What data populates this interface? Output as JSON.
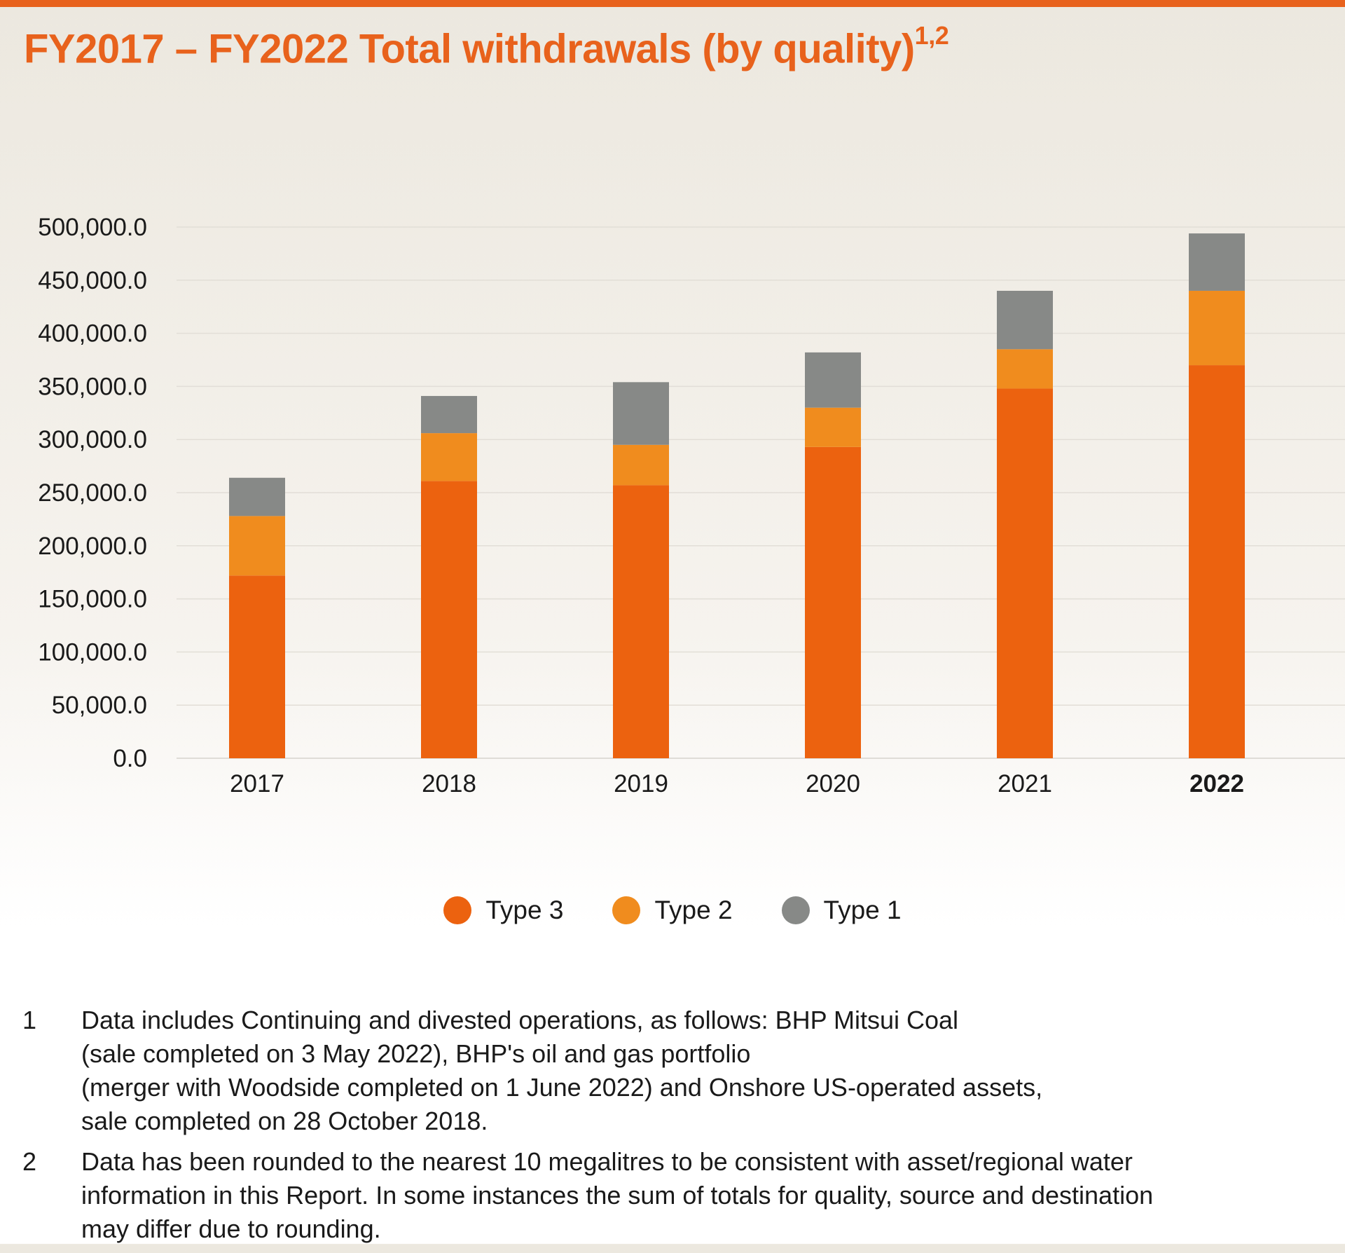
{
  "title": "FY2017 – FY2022 Total withdrawals (by quality)",
  "title_sup": "1,2",
  "chart_data": {
    "type": "bar",
    "stacked": true,
    "categories": [
      "2017",
      "2018",
      "2019",
      "2020",
      "2021",
      "2022"
    ],
    "highlight_category": "2022",
    "series": [
      {
        "name": "Type 3",
        "color": "#ec620f",
        "values": [
          172000,
          261000,
          257000,
          293000,
          348000,
          370000
        ]
      },
      {
        "name": "Type 2",
        "color": "#f08c1e",
        "values": [
          56000,
          45000,
          38000,
          37000,
          37000,
          70000
        ]
      },
      {
        "name": "Type 1",
        "color": "#878987",
        "values": [
          36000,
          35000,
          59000,
          52000,
          55000,
          54000
        ]
      }
    ],
    "y_ticks": [
      "0.0",
      "50,000.0",
      "100,000.0",
      "150,000.0",
      "200,000.0",
      "250,000.0",
      "300,000.0",
      "350,000.0",
      "400,000.0",
      "450,000.0",
      "500,000.0"
    ],
    "ylim": [
      0,
      500000
    ],
    "grid": true,
    "legend_position": "bottom-center"
  },
  "footnotes": [
    {
      "num": "1",
      "lines": [
        "Data includes Continuing and divested operations, as follows: BHP Mitsui Coal",
        "(sale completed on 3 May 2022), BHP's oil and gas portfolio",
        "(merger with Woodside completed on 1 June 2022) and Onshore US-operated assets,",
        "sale completed on 28 October 2018."
      ]
    },
    {
      "num": "2",
      "lines": [
        "Data has been rounded to the nearest 10 megalitres to be consistent with asset/regional water",
        "information in this Report. In some instances the sum of totals for quality, source and destination",
        "may differ due to rounding."
      ]
    }
  ]
}
